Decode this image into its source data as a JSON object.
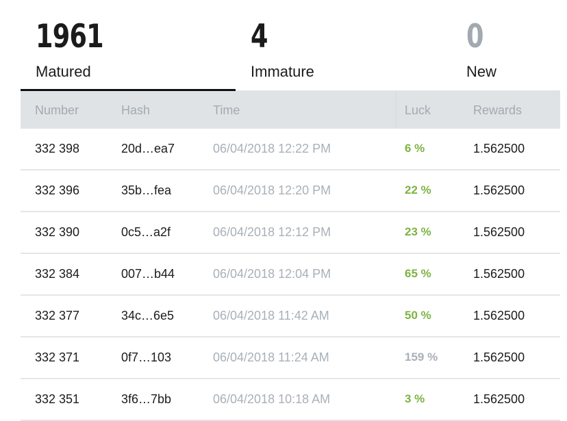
{
  "tabs": [
    {
      "count": "1961",
      "label": "Matured",
      "active": true
    },
    {
      "count": "4",
      "label": "Immature",
      "active": false
    },
    {
      "count": "0",
      "label": "New",
      "active": false
    }
  ],
  "table": {
    "headers": {
      "number": "Number",
      "hash": "Hash",
      "time": "Time",
      "luck": "Luck",
      "rewards": "Rewards"
    },
    "rows": [
      {
        "number": "332 398",
        "hash": "20d…ea7",
        "time": "06/04/2018 12:22 PM",
        "luck": "6 %",
        "rewards": "1.562500"
      },
      {
        "number": "332 396",
        "hash": "35b…fea",
        "time": "06/04/2018 12:20 PM",
        "luck": "22 %",
        "rewards": "1.562500"
      },
      {
        "number": "332 390",
        "hash": "0c5…a2f",
        "time": "06/04/2018 12:12 PM",
        "luck": "23 %",
        "rewards": "1.562500"
      },
      {
        "number": "332 384",
        "hash": "007…b44",
        "time": "06/04/2018 12:04 PM",
        "luck": "65 %",
        "rewards": "1.562500"
      },
      {
        "number": "332 377",
        "hash": "34c…6e5",
        "time": "06/04/2018 11:42 AM",
        "luck": "50 %",
        "rewards": "1.562500"
      },
      {
        "number": "332 371",
        "hash": "0f7…103",
        "time": "06/04/2018 11:24 AM",
        "luck": "159 %",
        "rewards": "1.562500"
      },
      {
        "number": "332 351",
        "hash": "3f6…7bb",
        "time": "06/04/2018 10:18 AM",
        "luck": "3 %",
        "rewards": "1.562500"
      }
    ]
  },
  "colors": {
    "luck_good": "#7cb342",
    "luck_bad": "#a9b0b7",
    "header_bg": "#dfe3e6"
  }
}
